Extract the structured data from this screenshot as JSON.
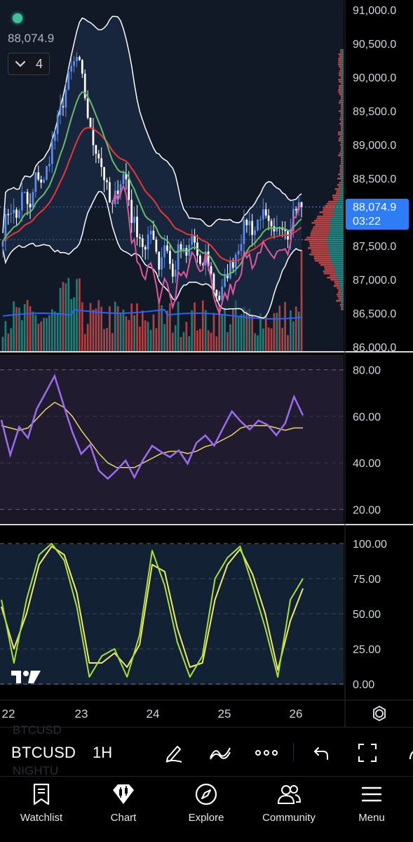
{
  "legend": {
    "last_price": "88,074.9",
    "indicator_count": "4"
  },
  "price_axis": {
    "labels": [
      "91,000.0",
      "90,500.0",
      "90,000.0",
      "89,500.0",
      "89,000.0",
      "88,500.0",
      "87,500.0",
      "87,000.0",
      "86,500.0",
      "86,000.0"
    ],
    "current_price": "88,074.9",
    "countdown": "03:22"
  },
  "rsi_axis": {
    "labels": [
      "80.00",
      "60.00",
      "40.00",
      "20.00"
    ]
  },
  "stoch_axis": {
    "labels": [
      "100.00",
      "75.00",
      "50.00",
      "25.00",
      "0.00"
    ]
  },
  "time_axis": {
    "labels": [
      "22",
      "23",
      "24",
      "25",
      "26"
    ]
  },
  "toolbar": {
    "symbol": "BTCUSD",
    "interval": "1H",
    "ghost_symbol": "BTCUSD",
    "ghost_session": "NIGHTU"
  },
  "nav": {
    "items": [
      {
        "label": "Watchlist",
        "icon": "bookmark-icon"
      },
      {
        "label": "Chart",
        "icon": "chart-diamond-icon"
      },
      {
        "label": "Explore",
        "icon": "compass-icon"
      },
      {
        "label": "Community",
        "icon": "people-icon"
      },
      {
        "label": "Menu",
        "icon": "hamburger-icon"
      }
    ]
  },
  "colors": {
    "up": "#26a69a",
    "down": "#ef5350",
    "candle_up": "#5b8def",
    "price_badge": "#2f7df6",
    "rsi": "#9b6cf0",
    "rsi_ma": "#e8d56a",
    "stoch_k": "#a6e22e",
    "stoch_d": "#f2e86d",
    "bollinger": "#ffffff",
    "ma_red": "#e53935",
    "ma_green": "#66bb6a",
    "ma_pink": "#e2559f",
    "volume_ma": "#2962ff"
  },
  "chart_data": [
    {
      "type": "candlestick",
      "symbol": "BTCUSD",
      "interval": "1H",
      "ylim": [
        86000,
        91000
      ],
      "x": [
        "22",
        "23",
        "24",
        "25",
        "26"
      ],
      "last": 88074.9,
      "close_path": [
        87700,
        88100,
        87900,
        88300,
        88000,
        88600,
        88400,
        88900,
        89300,
        89700,
        90100,
        90300,
        89800,
        89100,
        88900,
        88500,
        88000,
        88400,
        88600,
        87900,
        87700,
        87400,
        87800,
        87200,
        87600,
        87000,
        87500,
        87300,
        87700,
        87100,
        87400,
        86900,
        86700,
        87100,
        87300,
        87600,
        87900,
        87700,
        88000,
        87800,
        87600,
        87900,
        87700,
        88100,
        88074.9
      ]
    },
    {
      "type": "line",
      "name": "",
      "ylim": [
        15,
        85
      ],
      "series_rsi": [
        58,
        42,
        56,
        50,
        62,
        70,
        77,
        66,
        54,
        44,
        48,
        38,
        33,
        36,
        40,
        35,
        42,
        47,
        45,
        43,
        46,
        41,
        49,
        52,
        47,
        55,
        62,
        58,
        54,
        57,
        55,
        52,
        56,
        67,
        60
      ],
      "series_rsi_ma": [
        56,
        55,
        54,
        55,
        59,
        63,
        66,
        64,
        60,
        54,
        49,
        44,
        40,
        38,
        38,
        38,
        40,
        42,
        44,
        45,
        45,
        44,
        45,
        47,
        48,
        50,
        52,
        55,
        56,
        56,
        56,
        55,
        54,
        55,
        55
      ]
    },
    {
      "type": "line",
      "name": "",
      "ylim": [
        0,
        100
      ],
      "series_k": [
        60,
        15,
        60,
        92,
        100,
        88,
        55,
        5,
        20,
        25,
        5,
        35,
        95,
        70,
        30,
        5,
        20,
        75,
        90,
        98,
        70,
        40,
        5,
        60,
        75
      ],
      "series_d": [
        55,
        25,
        50,
        85,
        98,
        92,
        65,
        15,
        15,
        22,
        12,
        28,
        85,
        80,
        40,
        12,
        15,
        60,
        85,
        96,
        78,
        50,
        10,
        45,
        68
      ]
    }
  ]
}
